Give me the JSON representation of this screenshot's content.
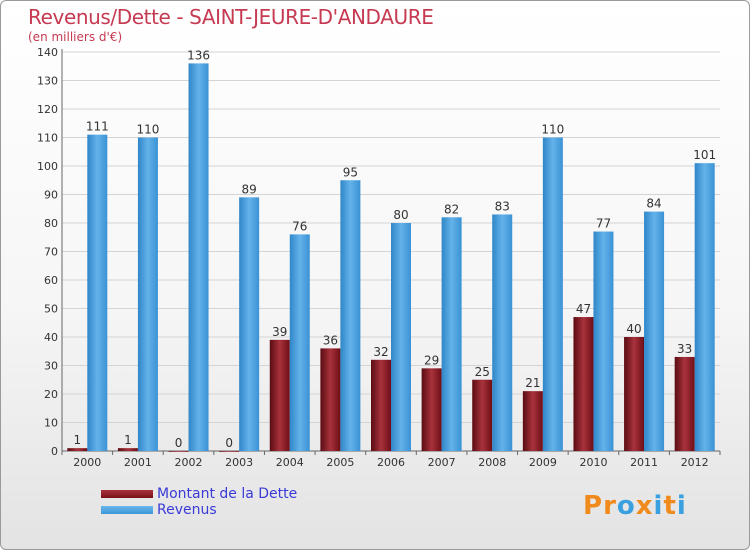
{
  "title": "Revenus/Dette - SAINT-JEURE-D'ANDAURE",
  "subtitle": "(en milliers d'€)",
  "logo": {
    "text": "Proxiti",
    "letters": [
      "P",
      "r",
      "o",
      "x",
      "i",
      "t",
      "i"
    ],
    "colors": [
      "#f08a1c",
      "#f08a1c",
      "#3aa0e0",
      "#f08a1c",
      "#3aa0e0",
      "#f08a1c",
      "#3aa0e0"
    ]
  },
  "colors": {
    "dette": "#7a1018",
    "revenus": "#3d97d9",
    "title": "#c63a52",
    "legend_text": "#3a3ad8"
  },
  "chart_data": {
    "type": "bar",
    "title": "Revenus/Dette - SAINT-JEURE-D'ANDAURE",
    "ylabel": "(en milliers d'€)",
    "categories": [
      "2000",
      "2001",
      "2002",
      "2003",
      "2004",
      "2005",
      "2006",
      "2007",
      "2008",
      "2009",
      "2010",
      "2011",
      "2012"
    ],
    "series": [
      {
        "name": "Montant de la Dette",
        "values": [
          1,
          1,
          0,
          0,
          39,
          36,
          32,
          29,
          25,
          21,
          47,
          40,
          33
        ]
      },
      {
        "name": "Revenus",
        "values": [
          111,
          110,
          136,
          89,
          76,
          95,
          80,
          82,
          83,
          110,
          77,
          84,
          101
        ]
      }
    ],
    "ylim": [
      0,
      140
    ],
    "yticks": [
      0,
      10,
      20,
      30,
      40,
      50,
      60,
      70,
      80,
      90,
      100,
      110,
      120,
      130,
      140
    ],
    "grid": true,
    "legend": "bottom-left"
  }
}
